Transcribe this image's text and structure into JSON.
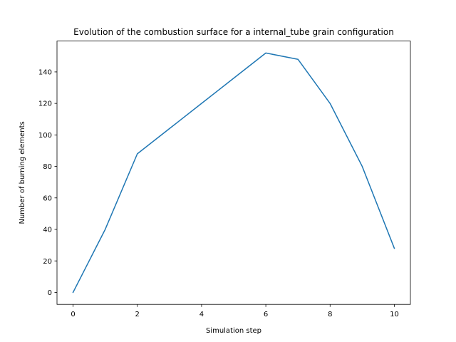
{
  "chart_data": {
    "type": "line",
    "title": "Evolution of the combustion surface for a internal_tube grain configuration",
    "xlabel": "Simulation step",
    "ylabel": "Number of burning elements",
    "xlim": [
      -0.5,
      10.5
    ],
    "ylim": [
      -7.6,
      159.6
    ],
    "xticks": [
      0,
      2,
      4,
      6,
      8,
      10
    ],
    "yticks": [
      0,
      20,
      40,
      60,
      80,
      100,
      120,
      140
    ],
    "grid": false,
    "legend": "none",
    "series": [
      {
        "color": "#1f77b4",
        "x": [
          0,
          1,
          2,
          3,
          4,
          5,
          6,
          7,
          8,
          9,
          10
        ],
        "values": [
          0,
          40,
          88,
          104,
          120,
          136,
          152,
          148,
          120,
          80,
          28
        ]
      }
    ]
  }
}
